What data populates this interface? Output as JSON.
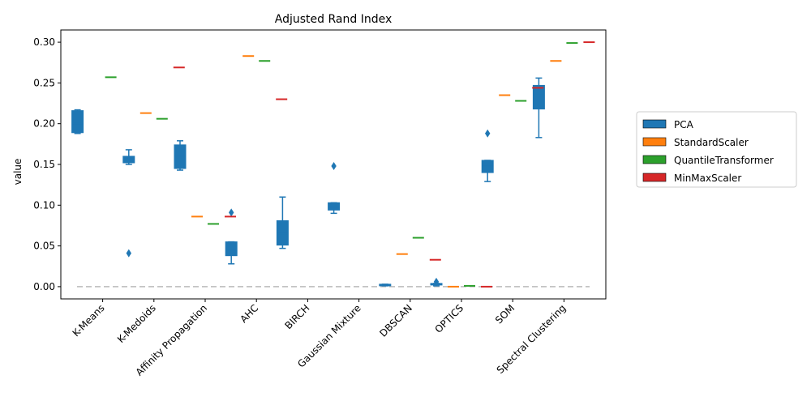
{
  "chart_data": {
    "type": "box",
    "title": "Adjusted Rand Index",
    "xlabel": "",
    "ylabel": "value",
    "ylim": [
      -0.015,
      0.315
    ],
    "yticks": [
      "0.00",
      "0.05",
      "0.10",
      "0.15",
      "0.20",
      "0.25",
      "0.30"
    ],
    "ytick_values": [
      0,
      0.05,
      0.1,
      0.15,
      0.2,
      0.25,
      0.3
    ],
    "reference_line": 0,
    "legend_position": "right",
    "categories": [
      "K-Means",
      "K-Medoids",
      "Affinity Propagation",
      "AHC",
      "BIRCH",
      "Gaussian Mixture",
      "DBSCAN",
      "OPTICS",
      "SOM",
      "Spectral Clustering"
    ],
    "series": [
      {
        "name": "PCA",
        "color": "#1f77b4",
        "boxes": [
          {
            "wl": 0.188,
            "q1": 0.189,
            "med": 0.2,
            "q3": 0.216,
            "wh": 0.217,
            "outliers": []
          },
          {
            "wl": 0.15,
            "q1": 0.152,
            "med": 0.157,
            "q3": 0.16,
            "wh": 0.168,
            "outliers": [
              0.041
            ]
          },
          {
            "wl": 0.143,
            "q1": 0.145,
            "med": 0.16,
            "q3": 0.174,
            "wh": 0.179,
            "outliers": []
          },
          {
            "wl": 0.028,
            "q1": 0.038,
            "med": 0.045,
            "q3": 0.055,
            "wh": 0.055,
            "outliers": [
              0.091
            ]
          },
          {
            "wl": 0.047,
            "q1": 0.051,
            "med": 0.065,
            "q3": 0.081,
            "wh": 0.11,
            "outliers": []
          },
          {
            "wl": 0.09,
            "q1": 0.094,
            "med": 0.098,
            "q3": 0.103,
            "wh": 0.103,
            "outliers": [
              0.148
            ]
          },
          {
            "wl": 0.001,
            "q1": 0.001,
            "med": 0.002,
            "q3": 0.003,
            "wh": 0.003,
            "outliers": []
          },
          {
            "wl": 0.001,
            "q1": 0.002,
            "med": 0.003,
            "q3": 0.004,
            "wh": 0.004,
            "outliers": [
              0.006
            ]
          },
          {
            "wl": 0.129,
            "q1": 0.14,
            "med": 0.148,
            "q3": 0.155,
            "wh": 0.155,
            "outliers": [
              0.188
            ]
          },
          {
            "wl": 0.183,
            "q1": 0.218,
            "med": 0.235,
            "q3": 0.247,
            "wh": 0.256,
            "outliers": []
          }
        ]
      },
      {
        "name": "StandardScaler",
        "color": "#ff7f0e",
        "values": [
          null,
          0.213,
          0.086,
          0.283,
          null,
          null,
          0.04,
          0.0,
          0.235,
          0.277
        ]
      },
      {
        "name": "QuantileTransformer",
        "color": "#2ca02c",
        "values": [
          0.257,
          0.206,
          0.077,
          0.277,
          null,
          null,
          0.06,
          0.001,
          0.228,
          0.299
        ]
      },
      {
        "name": "MinMaxScaler",
        "color": "#d62728",
        "values": [
          null,
          0.269,
          0.086,
          0.23,
          null,
          null,
          0.033,
          0.0,
          0.244,
          0.3
        ]
      }
    ]
  }
}
